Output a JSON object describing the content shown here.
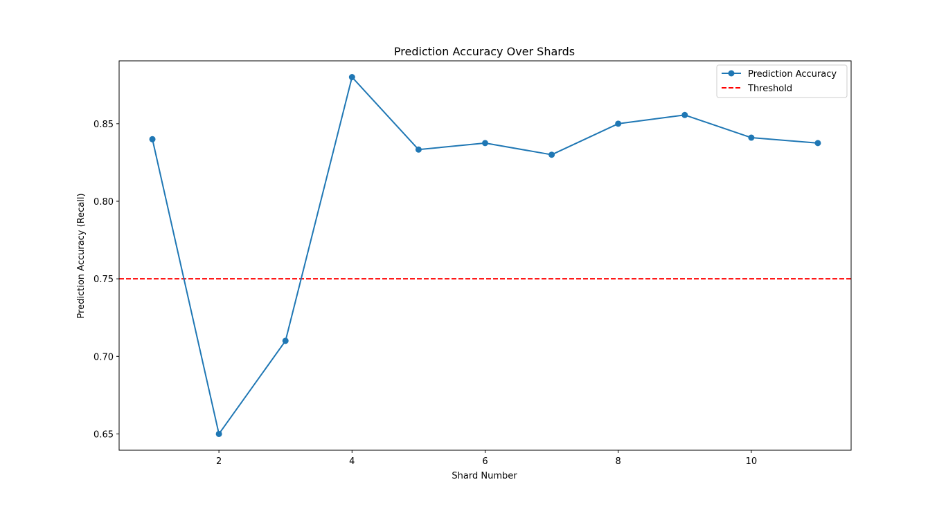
{
  "chart_data": {
    "type": "line",
    "title": "Prediction Accuracy Over Shards",
    "xlabel": "Shard Number",
    "ylabel": "Prediction Accuracy (Recall)",
    "xlim": [
      0.5,
      11.5
    ],
    "ylim": [
      0.6395,
      0.8905
    ],
    "x_ticks": [
      2,
      4,
      6,
      8,
      10
    ],
    "x_tick_labels": [
      "2",
      "4",
      "6",
      "8",
      "10"
    ],
    "y_ticks": [
      0.65,
      0.7,
      0.75,
      0.8,
      0.85
    ],
    "y_tick_labels": [
      "0.65",
      "0.70",
      "0.75",
      "0.80",
      "0.85"
    ],
    "grid": false,
    "legend_position": "top-right",
    "series": [
      {
        "name": "Prediction Accuracy",
        "style": "solid-with-markers",
        "color": "#1f77b4",
        "x": [
          1,
          2,
          3,
          4,
          5,
          6,
          7,
          8,
          9,
          10,
          11
        ],
        "values": [
          0.84,
          0.65,
          0.71,
          0.88,
          0.8333,
          0.8375,
          0.83,
          0.85,
          0.8556,
          0.841,
          0.8375
        ]
      }
    ],
    "reference_lines": [
      {
        "name": "Threshold",
        "orientation": "horizontal",
        "style": "dashed",
        "color": "#ff0000",
        "value": 0.75
      }
    ]
  }
}
